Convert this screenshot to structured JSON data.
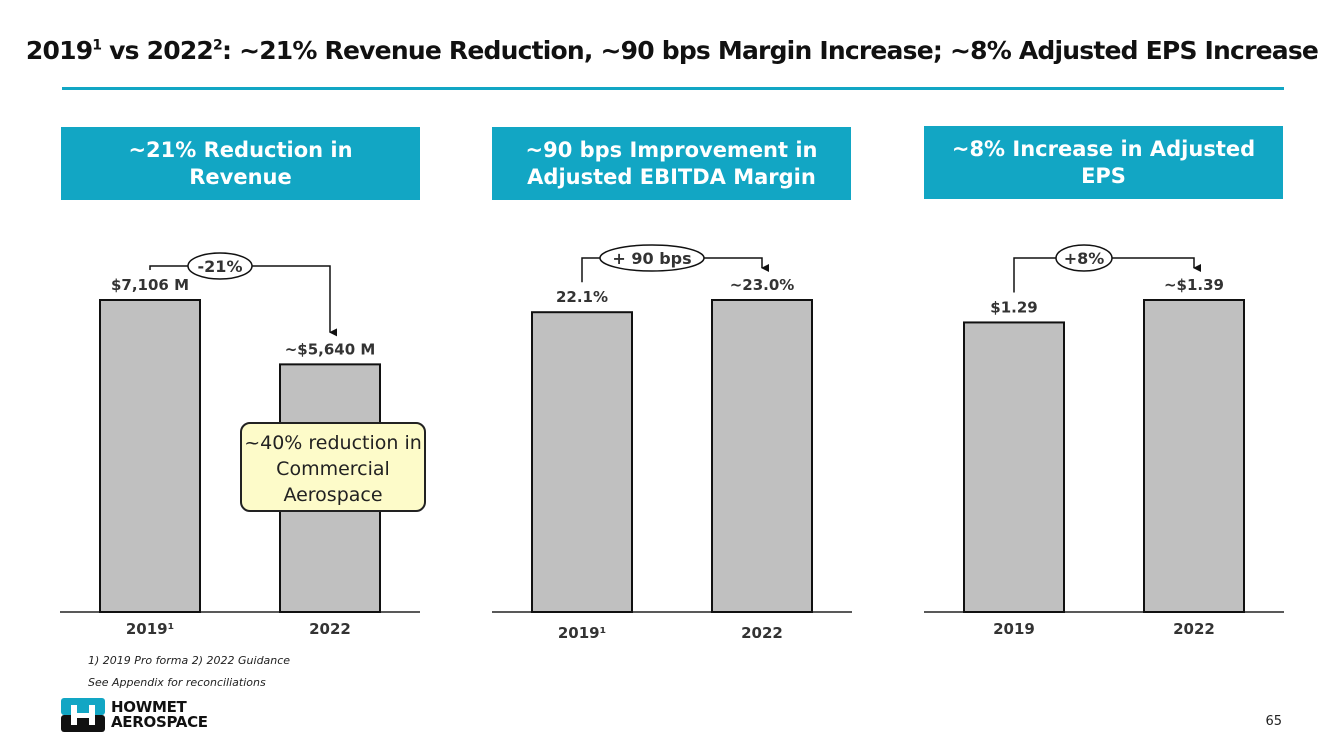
{
  "title": {
    "part1": "2019",
    "sup1": "1",
    "part2": " vs 2022",
    "sup2": "2",
    "part3": ": ~21% Revenue Reduction, ~90 bps Margin Increase; ~8% Adjusted EPS Increase"
  },
  "headers": [
    "~21% Reduction in Revenue",
    "~90 bps Improvement in Adjusted EBITDA Margin",
    "~8% Increase in Adjusted EPS"
  ],
  "callout": "~40% reduction in Commercial Aerospace",
  "footnotes": [
    "1) 2019 Pro forma 2) 2022 Guidance",
    "See Appendix for reconciliations"
  ],
  "logo": {
    "line1": "HOWMET",
    "line2": "AEROSPACE"
  },
  "page_number": "65",
  "colors": {
    "accent": "#12a6c4",
    "bar": "#c0c0c0",
    "callout": "#fdfbc9"
  },
  "chart_data": [
    {
      "type": "bar",
      "title": "~21% Reduction in Revenue",
      "categories": [
        "2019¹",
        "2022"
      ],
      "values": [
        7106,
        5640
      ],
      "labels": [
        "$7,106 M",
        "~$5,640 M"
      ],
      "change_label": "-21%",
      "unit": "$M",
      "ylim": [
        0,
        7106
      ]
    },
    {
      "type": "bar",
      "title": "~90 bps Improvement in Adjusted EBITDA Margin",
      "categories": [
        "2019¹",
        "2022"
      ],
      "values": [
        22.1,
        23.0
      ],
      "labels": [
        "22.1%",
        "~23.0%"
      ],
      "change_label": "+ 90 bps",
      "unit": "%",
      "ylim": [
        0,
        23.0
      ]
    },
    {
      "type": "bar",
      "title": "~8% Increase in Adjusted EPS",
      "categories": [
        "2019",
        "2022"
      ],
      "values": [
        1.29,
        1.39
      ],
      "labels": [
        "$1.29",
        "~$1.39"
      ],
      "change_label": "+8%",
      "unit": "$",
      "ylim": [
        0,
        1.39
      ]
    }
  ]
}
